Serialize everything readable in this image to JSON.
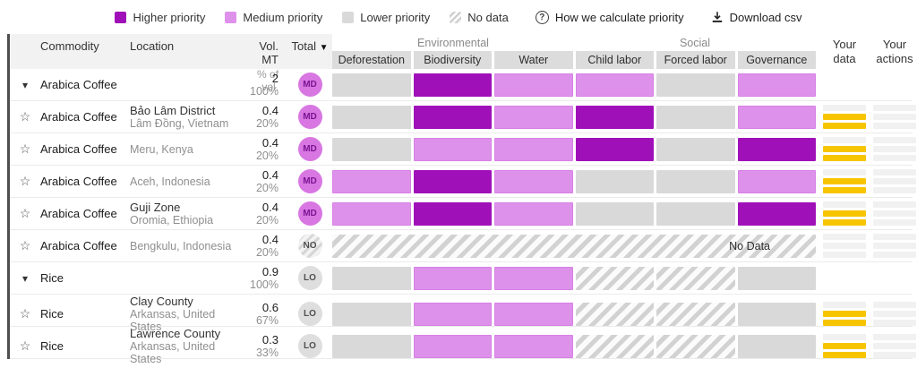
{
  "colors": {
    "higher": "#a010b9",
    "medium": "#de91eb",
    "lower": "#d9d9d9",
    "yellow": "#f7c500"
  },
  "icons": {
    "expand": "▾",
    "star": "☆",
    "sort": "▼",
    "help": "?"
  },
  "legend": {
    "items": [
      {
        "label": "Higher priority",
        "type": "higher"
      },
      {
        "label": "Medium priority",
        "type": "medium"
      },
      {
        "label": "Lower priority",
        "type": "lower"
      },
      {
        "label": "No data",
        "type": "nodata"
      }
    ]
  },
  "toolbar": {
    "help_label": "How we calculate priority",
    "download_label": "Download csv"
  },
  "header": {
    "commodity": "Commodity",
    "location": "Location",
    "vol": "Vol. MT",
    "vol_sub": "% of vol.",
    "total": "Total",
    "groups": [
      {
        "label": "Environmental",
        "cols": [
          "Deforestation",
          "Biodiversity",
          "Water"
        ]
      },
      {
        "label": "Social",
        "cols": [
          "Child labor",
          "Forced labor",
          "Governance"
        ]
      }
    ],
    "your_data": "Your data",
    "your_actions": "Your actions"
  },
  "rows": [
    {
      "kind": "group",
      "icon": "expand",
      "commodity": "Arabica Coffee",
      "location_primary": "",
      "location_secondary": "",
      "vol": "2",
      "pct": "100%",
      "badge": "MD",
      "badge_style": "md",
      "no_data_bar": false,
      "bars": [
        "lower",
        "higher",
        "medium",
        "medium",
        "lower",
        "medium"
      ],
      "your_data": null,
      "your_actions": null
    },
    {
      "kind": "location",
      "icon": "star",
      "commodity": "Arabica Coffee",
      "location_primary": "Bảo Lâm District",
      "location_secondary": "Lâm Đồng, Vietnam",
      "vol": "0.4",
      "pct": "20%",
      "badge": "MD",
      "badge_style": "md",
      "no_data_bar": false,
      "bars": [
        "lower",
        "higher",
        "medium",
        "higher",
        "lower",
        "medium"
      ],
      "your_data": [
        "empty",
        "filled",
        "filled"
      ],
      "your_actions": [
        "empty",
        "empty",
        "empty"
      ]
    },
    {
      "kind": "location",
      "icon": "star",
      "commodity": "Arabica Coffee",
      "location_primary": "",
      "location_secondary": "Meru, Kenya",
      "vol": "0.4",
      "pct": "20%",
      "badge": "MD",
      "badge_style": "md",
      "no_data_bar": false,
      "bars": [
        "lower",
        "medium",
        "medium",
        "higher",
        "lower",
        "higher"
      ],
      "your_data": [
        "empty",
        "filled",
        "filled"
      ],
      "your_actions": [
        "empty",
        "empty",
        "empty"
      ]
    },
    {
      "kind": "location",
      "icon": "star",
      "commodity": "Arabica Coffee",
      "location_primary": "",
      "location_secondary": "Aceh, Indonesia",
      "vol": "0.4",
      "pct": "20%",
      "badge": "MD",
      "badge_style": "md",
      "no_data_bar": false,
      "bars": [
        "medium",
        "higher",
        "medium",
        "lower",
        "lower",
        "medium"
      ],
      "your_data": [
        "empty",
        "filled",
        "filled"
      ],
      "your_actions": [
        "empty",
        "empty",
        "empty"
      ]
    },
    {
      "kind": "location",
      "icon": "star",
      "commodity": "Arabica Coffee",
      "location_primary": "Guji Zone",
      "location_secondary": "Oromia, Ethiopia",
      "vol": "0.4",
      "pct": "20%",
      "badge": "MD",
      "badge_style": "md",
      "no_data_bar": false,
      "bars": [
        "medium",
        "higher",
        "medium",
        "lower",
        "lower",
        "higher"
      ],
      "your_data": [
        "empty",
        "filled",
        "filled"
      ],
      "your_actions": [
        "empty",
        "empty",
        "empty"
      ]
    },
    {
      "kind": "location",
      "icon": "star",
      "commodity": "Arabica Coffee",
      "location_primary": "",
      "location_secondary": "Bengkulu, Indonesia",
      "vol": "0.4",
      "pct": "20%",
      "badge": "NO",
      "badge_style": "no",
      "no_data_bar": true,
      "no_data_label": "No Data",
      "bars": [],
      "your_data": [
        "empty",
        "empty",
        "empty"
      ],
      "your_actions": [
        "empty",
        "empty",
        "empty"
      ]
    },
    {
      "kind": "group",
      "icon": "expand",
      "commodity": "Rice",
      "location_primary": "",
      "location_secondary": "",
      "vol": "0.9",
      "pct": "100%",
      "badge": "LO",
      "badge_style": "lo",
      "no_data_bar": false,
      "bars": [
        "lower",
        "medium",
        "medium",
        "nodata",
        "nodata",
        "lower"
      ],
      "your_data": null,
      "your_actions": null
    },
    {
      "kind": "location",
      "icon": "star",
      "commodity": "Rice",
      "location_primary": "Clay County",
      "location_secondary": "Arkansas, United States",
      "vol": "0.6",
      "pct": "67%",
      "badge": "LO",
      "badge_style": "lo",
      "no_data_bar": false,
      "bars": [
        "lower",
        "medium",
        "medium",
        "nodata",
        "nodata",
        "lower"
      ],
      "your_data": [
        "empty",
        "filled",
        "filled"
      ],
      "your_actions": [
        "empty",
        "empty",
        "empty"
      ]
    },
    {
      "kind": "location",
      "icon": "star",
      "commodity": "Rice",
      "location_primary": "Lawrence County",
      "location_secondary": "Arkansas, United States",
      "vol": "0.3",
      "pct": "33%",
      "badge": "LO",
      "badge_style": "lo",
      "no_data_bar": false,
      "bars": [
        "lower",
        "medium",
        "medium",
        "nodata",
        "nodata",
        "lower"
      ],
      "your_data": [
        "empty",
        "filled",
        "filled"
      ],
      "your_actions": [
        "empty",
        "empty",
        "empty"
      ]
    }
  ]
}
